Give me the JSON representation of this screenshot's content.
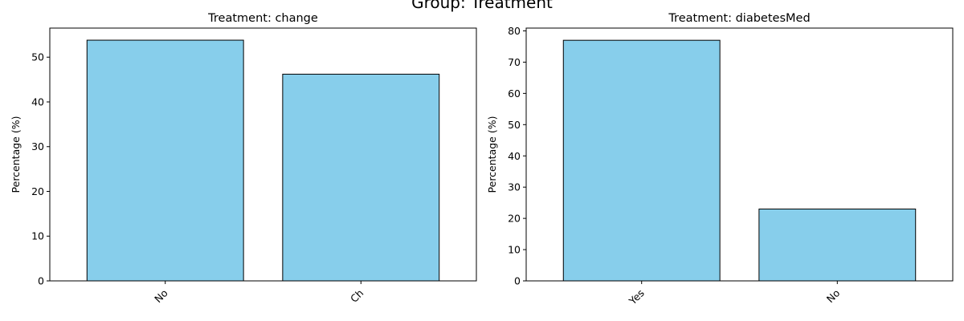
{
  "figure": {
    "suptitle": "Group: Treatment"
  },
  "chart_data": [
    {
      "type": "bar",
      "title": "Treatment: change",
      "xlabel": "",
      "ylabel": "Percentage (%)",
      "categories": [
        "No",
        "Ch"
      ],
      "values": [
        53.8,
        46.2
      ],
      "ylim": [
        0,
        56.5
      ],
      "yticks": [
        0,
        10,
        20,
        30,
        40,
        50
      ],
      "bar_color": "#87CEEB",
      "edge_color": "#000000",
      "xtick_rotation": 45,
      "grid": false,
      "legend": "none"
    },
    {
      "type": "bar",
      "title": "Treatment: diabetesMed",
      "xlabel": "",
      "ylabel": "Percentage (%)",
      "categories": [
        "Yes",
        "No"
      ],
      "values": [
        77.0,
        23.0
      ],
      "ylim": [
        0,
        80.9
      ],
      "yticks": [
        0,
        10,
        20,
        30,
        40,
        50,
        60,
        70,
        80
      ],
      "bar_color": "#87CEEB",
      "edge_color": "#000000",
      "xtick_rotation": 45,
      "grid": false,
      "legend": "none"
    }
  ]
}
